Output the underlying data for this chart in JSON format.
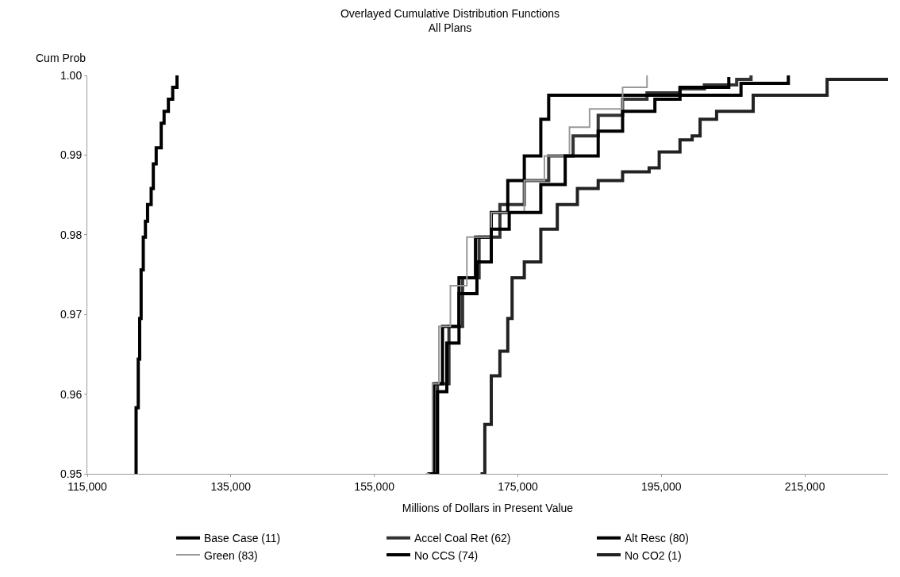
{
  "chart_data": {
    "type": "step",
    "title": "Overlayed Cumulative Distribution Functions",
    "subtitle": "All Plans",
    "xlabel": "Millions of Dollars in Present Value",
    "ylabel": "Cum Prob",
    "xlim": [
      115000,
      226600
    ],
    "ylim": [
      0.95,
      1.0
    ],
    "xticks": [
      {
        "value": 115000,
        "label": "115,000"
      },
      {
        "value": 135000,
        "label": "135,000"
      },
      {
        "value": 155000,
        "label": "155,000"
      },
      {
        "value": 175000,
        "label": "175,000"
      },
      {
        "value": 195000,
        "label": "195,000"
      },
      {
        "value": 215000,
        "label": "215,000"
      }
    ],
    "yticks": [
      {
        "value": 0.95,
        "label": "0.95"
      },
      {
        "value": 0.96,
        "label": "0.96"
      },
      {
        "value": 0.97,
        "label": "0.97"
      },
      {
        "value": 0.98,
        "label": "0.98"
      },
      {
        "value": 0.99,
        "label": "0.99"
      },
      {
        "value": 1.0,
        "label": "1.00"
      }
    ],
    "legend": "bottom",
    "marker": "none",
    "line_style": "solid",
    "series": [
      {
        "name": "Base Case (11)",
        "color": "#000000",
        "x": [
          121700,
          121800,
          122100,
          122300,
          122500,
          122800,
          123100,
          123400,
          123900,
          124200,
          124600,
          125300,
          125700,
          126300,
          126900,
          127500
        ],
        "values": [
          0.95,
          0.9583,
          0.9644,
          0.9695,
          0.9756,
          0.9797,
          0.9817,
          0.9838,
          0.9858,
          0.9889,
          0.9909,
          0.994,
          0.9955,
          0.997,
          0.9985,
          1.0
        ]
      },
      {
        "name": "Accel Coal Ret (62)",
        "color": "#333333",
        "x": [
          162900,
          163800,
          165400,
          167300,
          169600,
          172500,
          175900,
          179300,
          182700,
          186200,
          189600,
          193000,
          197600,
          201000,
          205500,
          207500
        ],
        "values": [
          0.95,
          0.9613,
          0.9685,
          0.9746,
          0.9797,
          0.9838,
          0.9868,
          0.9899,
          0.9924,
          0.995,
          0.997,
          0.9978,
          0.9983,
          0.9988,
          0.9995,
          1.0
        ]
      },
      {
        "name": "Alt Resc (80)",
        "color": "#000000",
        "x": [
          162400,
          163300,
          164500,
          166800,
          169100,
          171300,
          173600,
          175900,
          178200,
          179300,
          205000,
          206100,
          212400,
          212700
        ],
        "values": [
          0.95,
          0.9613,
          0.9685,
          0.9746,
          0.9797,
          0.9828,
          0.9868,
          0.9899,
          0.9945,
          0.9975,
          0.9975,
          0.999,
          0.999,
          1.0
        ]
      },
      {
        "name": "Green (83)",
        "color": "#999999",
        "x": [
          162200,
          163100,
          164000,
          165600,
          167900,
          171300,
          175900,
          178700,
          182200,
          185000,
          189600,
          193000
        ],
        "values": [
          0.95,
          0.9613,
          0.9685,
          0.9736,
          0.9797,
          0.9828,
          0.9868,
          0.9899,
          0.9935,
          0.9958,
          0.9985,
          1.0
        ]
      },
      {
        "name": "No CCS (74)",
        "color": "#000000",
        "x": [
          162700,
          163800,
          165100,
          166800,
          169300,
          171300,
          173800,
          178200,
          181600,
          186200,
          189600,
          194100,
          197600,
          204400
        ],
        "values": [
          0.95,
          0.9603,
          0.9664,
          0.9726,
          0.9766,
          0.9807,
          0.9828,
          0.9863,
          0.9899,
          0.993,
          0.9955,
          0.997,
          0.9985,
          0.9998
        ]
      },
      {
        "name": "No CO2 (1)",
        "color": "#222222",
        "x": [
          169800,
          170400,
          171300,
          172500,
          173600,
          174200,
          175900,
          178200,
          180500,
          183300,
          186200,
          189600,
          193300,
          194700,
          197600,
          199300,
          200400,
          202700,
          207800,
          217300,
          218100,
          226600
        ],
        "values": [
          0.95,
          0.9562,
          0.9623,
          0.9654,
          0.9695,
          0.9746,
          0.9766,
          0.9807,
          0.9838,
          0.9858,
          0.9868,
          0.9879,
          0.9884,
          0.9904,
          0.9919,
          0.9924,
          0.9945,
          0.9955,
          0.9975,
          0.9975,
          0.9995,
          0.9995
        ]
      }
    ]
  }
}
